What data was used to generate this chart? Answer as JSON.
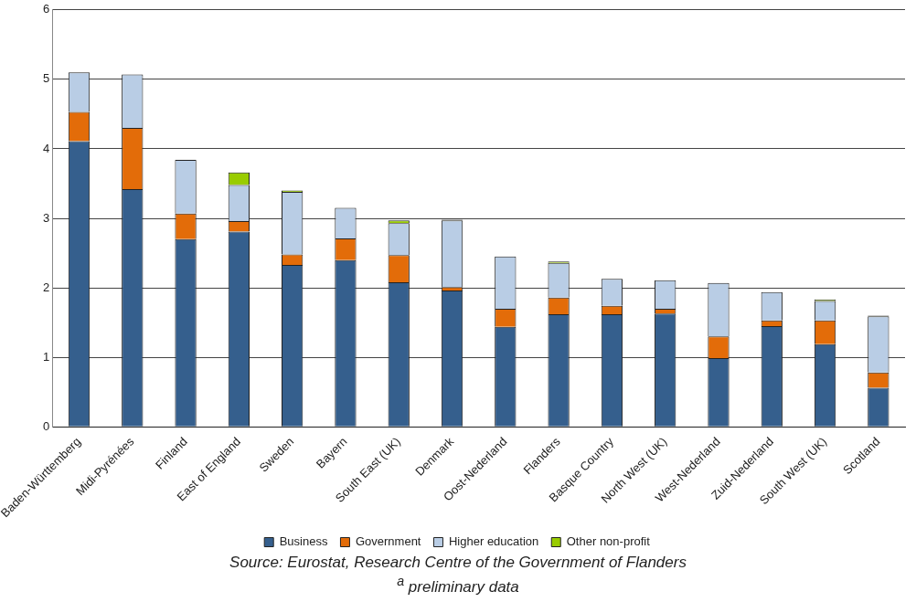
{
  "chart_data": {
    "type": "bar",
    "stacked": true,
    "categories": [
      "Baden-Württemberg",
      "Midi-Pyrénées",
      "Finland",
      "East of England",
      "Sweden",
      "Bayern",
      "South East (UK)",
      "Denmark",
      "Oost-Nederland",
      "Flanders",
      "Basque Country",
      "North West (UK)",
      "West-Nederland",
      "Zuid-Nederland",
      "South West (UK)",
      "Scotland"
    ],
    "series": [
      {
        "name": "Business",
        "color": "#355f8d",
        "values": [
          4.11,
          3.42,
          2.7,
          2.81,
          2.33,
          2.4,
          2.08,
          1.96,
          1.44,
          1.62,
          1.62,
          1.63,
          0.99,
          1.45,
          1.19,
          0.56
        ]
      },
      {
        "name": "Government",
        "color": "#e36c09",
        "values": [
          0.42,
          0.88,
          0.37,
          0.15,
          0.15,
          0.31,
          0.39,
          0.05,
          0.26,
          0.24,
          0.12,
          0.07,
          0.31,
          0.08,
          0.34,
          0.22
        ]
      },
      {
        "name": "Higher education",
        "color": "#b9cde5",
        "values": [
          0.57,
          0.77,
          0.77,
          0.52,
          0.9,
          0.44,
          0.46,
          0.96,
          0.75,
          0.5,
          0.39,
          0.41,
          0.77,
          0.41,
          0.28,
          0.81
        ]
      },
      {
        "name": "Other non-profit",
        "color": "#99cc00",
        "values": [
          0,
          0,
          0,
          0.18,
          0.02,
          0,
          0.04,
          0.01,
          0,
          0.02,
          0,
          null,
          0,
          0,
          0.02,
          0.01
        ]
      }
    ],
    "ylim": [
      0,
      6
    ],
    "yticks": [
      0,
      1,
      2,
      3,
      4,
      5,
      6
    ],
    "grid": "y",
    "legend": "bottom",
    "annotations": [
      "Source: Eurostat, Research Centre of the Government of Flanders",
      "$^{a}$ preliminary data"
    ]
  }
}
